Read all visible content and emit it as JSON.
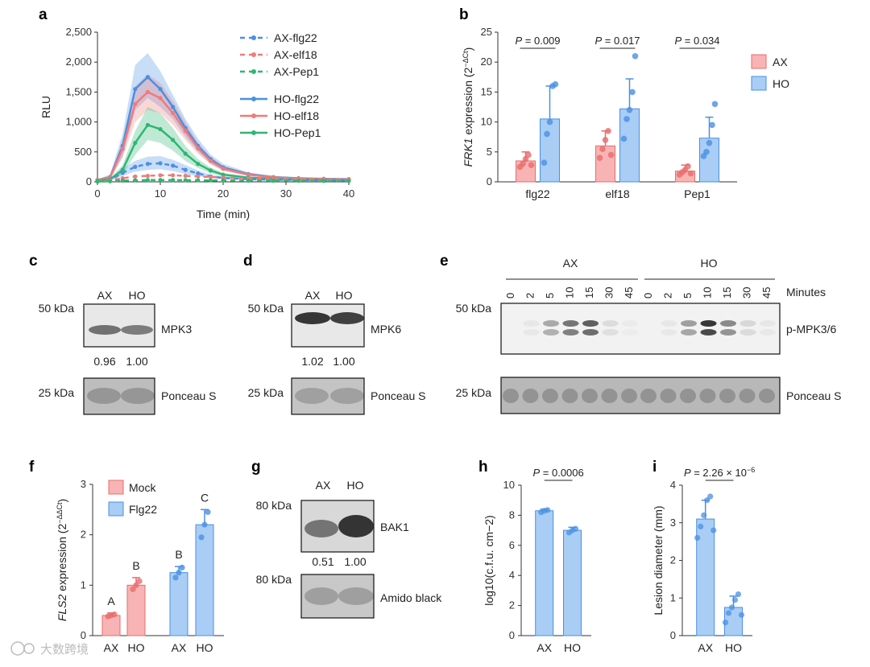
{
  "panel_letters": {
    "a": "a",
    "b": "b",
    "c": "c",
    "d": "d",
    "e": "e",
    "f": "f",
    "g": "g",
    "h": "h",
    "i": "i"
  },
  "colors": {
    "flg22": "#4a90e2",
    "elf18": "#ef7b7b",
    "pep1": "#2fb673",
    "ax_fill": "#f8b4b4",
    "ho_fill": "#a9cdf5",
    "ax_edge": "#e86c6c",
    "ho_edge": "#4a90e2"
  },
  "chart_data": [
    {
      "id": "a",
      "type": "line",
      "xlabel": "Time (min)",
      "ylabel": "RLU",
      "xlim": [
        0,
        40
      ],
      "ylim": [
        0,
        2500
      ],
      "xticks": [
        0,
        10,
        20,
        30,
        40
      ],
      "yticks": [
        0,
        500,
        1000,
        1500,
        2000,
        2500
      ],
      "ytick_labels": [
        "0",
        "500",
        "1,000",
        "1,500",
        "2,000",
        "2,500"
      ],
      "x": [
        0,
        2,
        4,
        6,
        8,
        10,
        12,
        14,
        16,
        18,
        20,
        24,
        28,
        32,
        36,
        40
      ],
      "series": [
        {
          "name": "HO-flg22",
          "style": "solid",
          "color_key": "flg22",
          "values": [
            30,
            80,
            600,
            1550,
            1750,
            1550,
            1250,
            900,
            600,
            380,
            240,
            130,
            80,
            60,
            50,
            45
          ],
          "upper": [
            45,
            120,
            800,
            1950,
            2150,
            1850,
            1450,
            1050,
            720,
            460,
            300,
            160,
            95,
            70,
            60,
            55
          ],
          "lower": [
            20,
            50,
            420,
            1200,
            1400,
            1250,
            1050,
            750,
            500,
            300,
            190,
            100,
            65,
            50,
            40,
            35
          ]
        },
        {
          "name": "HO-elf18",
          "style": "solid",
          "color_key": "elf18",
          "values": [
            30,
            70,
            550,
            1300,
            1500,
            1400,
            1150,
            850,
            560,
            350,
            220,
            120,
            75,
            55,
            45,
            40
          ],
          "upper": [
            40,
            100,
            700,
            1600,
            1800,
            1650,
            1350,
            1000,
            650,
            420,
            270,
            145,
            90,
            65,
            55,
            50
          ],
          "lower": [
            20,
            45,
            400,
            1000,
            1200,
            1150,
            950,
            700,
            470,
            290,
            180,
            95,
            60,
            45,
            35,
            30
          ]
        },
        {
          "name": "HO-Pep1",
          "style": "solid",
          "color_key": "pep1",
          "values": [
            20,
            40,
            200,
            650,
            950,
            880,
            700,
            470,
            300,
            190,
            120,
            70,
            50,
            40,
            35,
            30
          ],
          "upper": [
            30,
            60,
            280,
            850,
            1250,
            1150,
            900,
            600,
            380,
            240,
            150,
            85,
            60,
            45,
            40,
            35
          ],
          "lower": [
            12,
            25,
            130,
            450,
            700,
            650,
            520,
            350,
            230,
            140,
            90,
            55,
            40,
            32,
            28,
            25
          ]
        },
        {
          "name": "AX-flg22",
          "style": "dashed",
          "color_key": "flg22",
          "values": [
            10,
            30,
            150,
            250,
            300,
            310,
            270,
            200,
            140,
            90,
            65,
            45,
            35,
            30,
            25,
            25
          ],
          "upper": [
            15,
            45,
            220,
            350,
            420,
            430,
            370,
            280,
            190,
            120,
            85,
            55,
            45,
            38,
            32,
            30
          ],
          "lower": [
            5,
            20,
            100,
            170,
            200,
            210,
            180,
            130,
            95,
            65,
            45,
            35,
            28,
            24,
            20,
            20
          ]
        },
        {
          "name": "AX-elf18",
          "style": "dashed",
          "color_key": "elf18",
          "values": [
            10,
            25,
            60,
            90,
            100,
            110,
            110,
            100,
            90,
            80,
            70,
            55,
            45,
            40,
            35,
            35
          ]
        },
        {
          "name": "AX-Pep1",
          "style": "dashed",
          "color_key": "pep1",
          "values": [
            5,
            10,
            20,
            25,
            30,
            30,
            30,
            28,
            26,
            24,
            22,
            20,
            18,
            18,
            17,
            16
          ]
        }
      ],
      "legend": [
        "AX-flg22",
        "AX-elf18",
        "AX-Pep1",
        "HO-flg22",
        "HO-elf18",
        "HO-Pep1"
      ]
    },
    {
      "id": "b",
      "type": "bar",
      "ylabel_prefix": "FRK1",
      "ylabel_rest": " expression (2",
      "ylabel_sup": "−ΔCt",
      "ylabel_end": ")",
      "ylim": [
        0,
        25
      ],
      "yticks": [
        0,
        5,
        10,
        15,
        20,
        25
      ],
      "categories": [
        "flg22",
        "elf18",
        "Pep1"
      ],
      "series": [
        {
          "name": "AX",
          "values": [
            3.5,
            6.0,
            1.8
          ],
          "errors": [
            1.5,
            2.5,
            1.0
          ],
          "points": [
            [
              2.5,
              3.0,
              3.8,
              4.5,
              2.8
            ],
            [
              4.0,
              5.5,
              7.0,
              8.5,
              4.5
            ],
            [
              1.2,
              1.6,
              2.0,
              2.6,
              1.4
            ]
          ]
        },
        {
          "name": "HO",
          "values": [
            10.5,
            12.2,
            7.3
          ],
          "errors": [
            5.5,
            5.0,
            3.5
          ],
          "points": [
            [
              3.2,
              8.0,
              10.0,
              16.0,
              16.3
            ],
            [
              7.2,
              10.5,
              12.0,
              15.0,
              21.0
            ],
            [
              4.3,
              5.0,
              6.5,
              9.5,
              13.0
            ]
          ]
        }
      ],
      "pvalues": [
        "P = 0.009",
        "P = 0.017",
        "P = 0.034"
      ],
      "legend": [
        "AX",
        "HO"
      ]
    },
    {
      "id": "f",
      "type": "bar",
      "ylabel_prefix": "FLS2",
      "ylabel_rest": " expression (2",
      "ylabel_sup": "−ΔΔCt",
      "ylabel_end": ")",
      "ylim": [
        0,
        3
      ],
      "yticks": [
        0,
        1,
        2,
        3
      ],
      "categories": [
        "AX",
        "HO",
        "AX",
        "HO"
      ],
      "bars": [
        {
          "group": "Mock",
          "value": 0.4,
          "error": 0.05,
          "letter": "A",
          "points": [
            0.38,
            0.4,
            0.42
          ]
        },
        {
          "group": "Mock",
          "value": 1.0,
          "error": 0.15,
          "letter": "B",
          "points": [
            0.92,
            1.0,
            1.08
          ]
        },
        {
          "group": "Flg22",
          "value": 1.25,
          "error": 0.12,
          "letter": "B",
          "points": [
            1.15,
            1.25,
            1.35
          ]
        },
        {
          "group": "Flg22",
          "value": 2.2,
          "error": 0.3,
          "letter": "C",
          "points": [
            1.95,
            2.2,
            2.45
          ]
        }
      ],
      "legend": [
        "Mock",
        "Flg22"
      ]
    },
    {
      "id": "h",
      "type": "bar",
      "ylabel": "log10(c.f.u. cm−2)",
      "ylim": [
        0,
        10
      ],
      "yticks": [
        0,
        2,
        4,
        6,
        8,
        10
      ],
      "categories": [
        "AX",
        "HO"
      ],
      "values": [
        8.3,
        7.0
      ],
      "errors": [
        0.1,
        0.2
      ],
      "points": [
        [
          8.2,
          8.3,
          8.35
        ],
        [
          6.85,
          7.0,
          7.1
        ]
      ],
      "pvalue": "P = 0.0006"
    },
    {
      "id": "i",
      "type": "bar",
      "ylabel": "Lesion diameter (mm)",
      "ylim": [
        0,
        4
      ],
      "yticks": [
        0,
        1,
        2,
        3,
        4
      ],
      "categories": [
        "AX",
        "HO"
      ],
      "values": [
        3.1,
        0.75
      ],
      "errors": [
        0.5,
        0.3
      ],
      "points": [
        [
          2.6,
          2.9,
          3.2,
          3.6,
          3.7,
          2.8
        ],
        [
          0.35,
          0.6,
          0.75,
          0.95,
          1.1,
          0.55
        ]
      ],
      "pvalue": "P = 2.26 × 10",
      "pvalue_exp": "−6"
    }
  ],
  "blots": {
    "c": {
      "lanes": [
        "AX",
        "HO"
      ],
      "marker_top": "50 kDa",
      "marker_bottom": "25 kDa",
      "protein": "MPK3",
      "loading": "Ponceau S",
      "quant": [
        "0.96",
        "1.00"
      ]
    },
    "d": {
      "lanes": [
        "AX",
        "HO"
      ],
      "marker_top": "50 kDa",
      "marker_bottom": "25 kDa",
      "protein": "MPK6",
      "loading": "Ponceau S",
      "quant": [
        "1.02",
        "1.00"
      ]
    },
    "e": {
      "groups": [
        "AX",
        "HO"
      ],
      "time_label": "Minutes",
      "timepoints": [
        "0",
        "2",
        "5",
        "10",
        "15",
        "30",
        "45"
      ],
      "marker_top": "50 kDa",
      "marker_bottom": "25 kDa",
      "protein": "p-MPK3/6",
      "loading": "Ponceau S"
    },
    "g": {
      "lanes": [
        "AX",
        "HO"
      ],
      "marker_top": "80 kDa",
      "marker_bottom": "80 kDa",
      "protein": "BAK1",
      "loading": "Amido black",
      "quant": [
        "0.51",
        "1.00"
      ]
    }
  },
  "watermark": "大数跨境"
}
